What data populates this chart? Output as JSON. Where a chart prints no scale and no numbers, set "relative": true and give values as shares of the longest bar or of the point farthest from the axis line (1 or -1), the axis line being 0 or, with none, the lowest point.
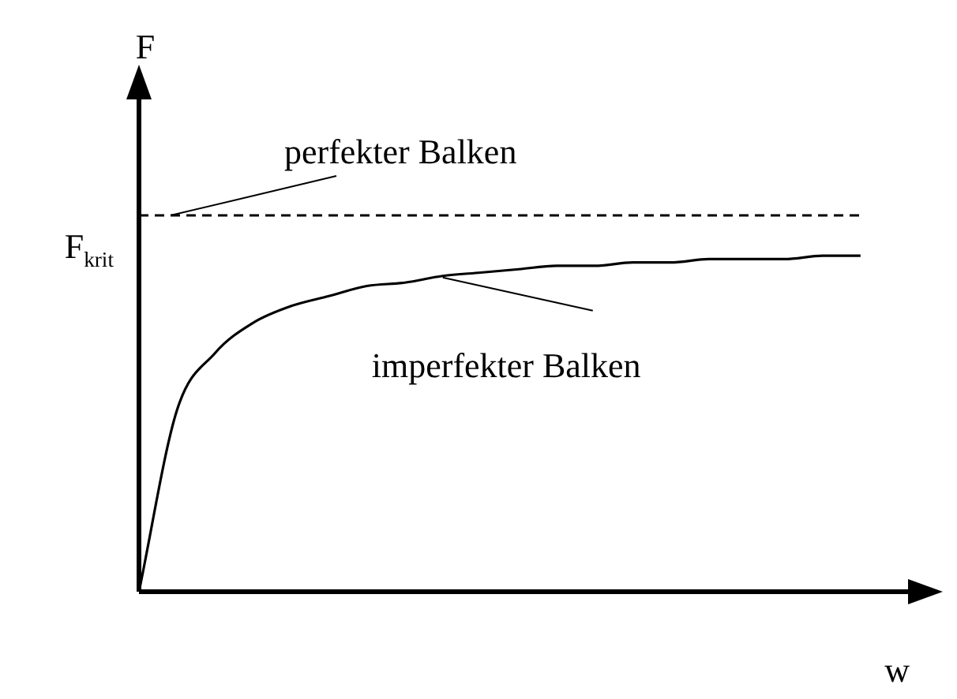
{
  "chart_data": {
    "type": "line",
    "relative": true,
    "xlabel": "w",
    "marker": "none",
    "line_style": "solid",
    "categories": [
      null,
      null,
      null,
      null,
      null,
      null,
      null,
      null,
      null,
      null,
      null,
      null,
      null,
      null,
      null,
      null,
      null,
      null,
      null,
      null,
      null,
      null
    ],
    "series": [
      {
        "name": "imperfekter Balken",
        "color": "#000000",
        "values": [
          0,
          0.54,
          0.71,
          0.8,
          0.85,
          0.88,
          0.91,
          0.92,
          0.94,
          0.95,
          0.96,
          0.97,
          0.97,
          0.98,
          0.98,
          0.99,
          0.99,
          0.99,
          1.0,
          1.0,
          null,
          null
        ]
      }
    ],
    "ref_lines": [
      {
        "axis": "y",
        "value": 1.12,
        "label": "F$_{krit}$",
        "color": "#000000",
        "line_style": "dashed"
      }
    ],
    "annotations": [
      "F",
      {
        "text": "perfekter Balken",
        "y": 1.12
      }
    ]
  }
}
